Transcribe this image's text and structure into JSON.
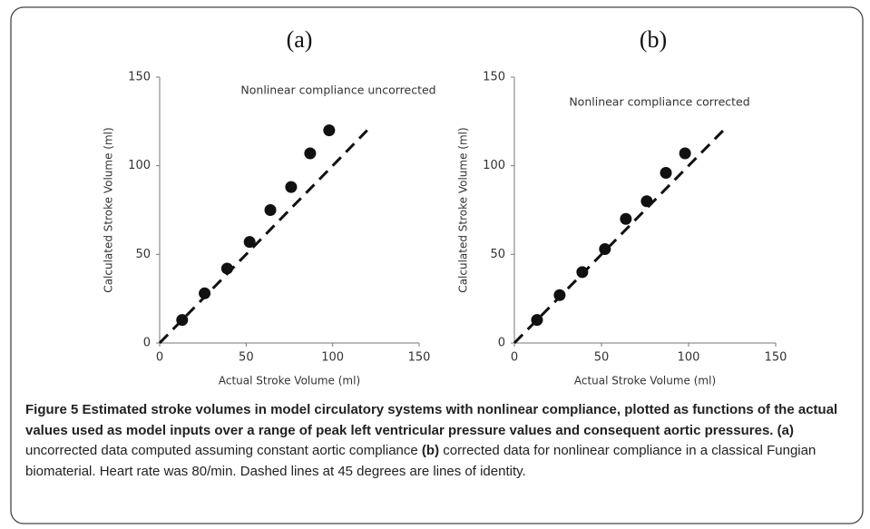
{
  "chart_data": [
    {
      "type": "scatter",
      "panel_label": "(a)",
      "annotation": "Nonlinear compliance uncorrected",
      "x_label": "Actual Stroke Volume (ml)",
      "y_label": "Calculated Stroke Volume (ml)",
      "x": [
        13,
        26,
        39,
        52,
        64,
        76,
        87,
        98
      ],
      "y": [
        13,
        28,
        42,
        57,
        75,
        88,
        107,
        120
      ],
      "color": "#111111",
      "identity_line": {
        "x": [
          0,
          120
        ],
        "y": [
          0,
          120
        ]
      },
      "xlim": [
        0,
        150
      ],
      "ylim": [
        0,
        150
      ],
      "xticks": [
        0,
        50,
        100,
        150
      ],
      "yticks": [
        0,
        50,
        100,
        150
      ]
    },
    {
      "type": "scatter",
      "panel_label": "(b)",
      "annotation": "Nonlinear compliance corrected",
      "x_label": "Actual Stroke Volume (ml)",
      "y_label": "Calculated Stroke Volume (ml)",
      "x": [
        13,
        26,
        39,
        52,
        64,
        76,
        87,
        98
      ],
      "y": [
        13,
        27,
        40,
        53,
        70,
        80,
        96,
        107
      ],
      "color": "#111111",
      "identity_line": {
        "x": [
          0,
          120
        ],
        "y": [
          0,
          120
        ]
      },
      "xlim": [
        0,
        150
      ],
      "ylim": [
        0,
        150
      ],
      "xticks": [
        0,
        50,
        100,
        150
      ],
      "yticks": [
        0,
        50,
        100,
        150
      ]
    }
  ],
  "caption": {
    "title": "Figure 5 Estimated stroke volumes in model circulatory systems with nonlinear compliance, plotted as functions of the actual values used as model inputs over a range of peak left ventricular pressure values and consequent aortic pressures.",
    "panels": [
      {
        "label": "(a)",
        "text": "uncorrected data computed assuming constant aortic compliance"
      },
      {
        "label": "(b)",
        "text": "corrected data for nonlinear compliance in a classical Fungian biomaterial. Heart rate was 80/min. Dashed lines at 45 degrees are lines of identity."
      }
    ]
  }
}
